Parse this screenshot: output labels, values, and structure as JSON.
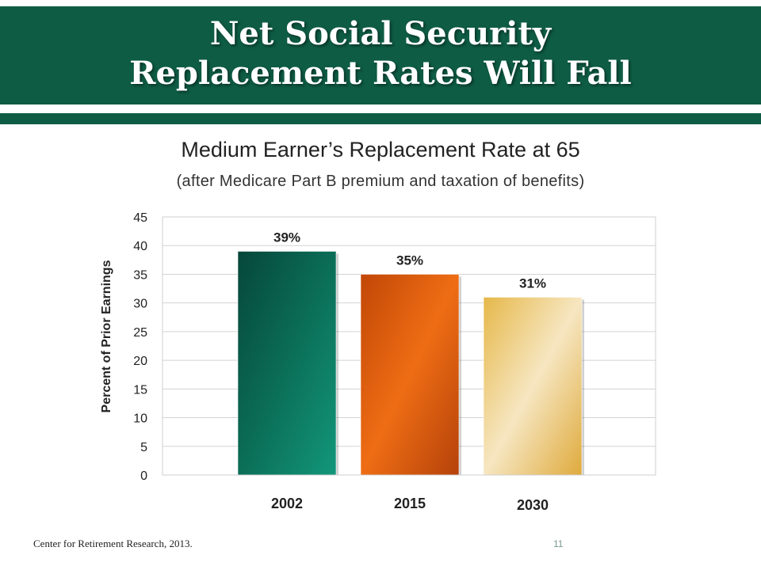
{
  "slide": {
    "title_line1": "Net Social Security",
    "title_line2": "Replacement Rates Will Fall",
    "source": "Center for Retirement Research, 2013.",
    "page_number": "11"
  },
  "colors": {
    "banner": "#0e5c44",
    "bar_2002": "#0b6e57",
    "bar_2015": "#e35f0d",
    "bar_2030": "#e9c36a"
  },
  "chart_data": {
    "type": "bar",
    "title": "Medium Earner’s Replacement Rate at 65",
    "subtitle": "(after Medicare Part B premium and taxation of benefits)",
    "ylabel": "Percent of Prior Earnings",
    "xlabel": "",
    "categories": [
      "2002",
      "2015",
      "2030"
    ],
    "values": [
      39,
      35,
      31
    ],
    "data_labels": [
      "39%",
      "35%",
      "31%"
    ],
    "ylim": [
      0,
      45
    ],
    "yticks": [
      0,
      5,
      10,
      15,
      20,
      25,
      30,
      35,
      40,
      45
    ],
    "grid": true,
    "legend": "none"
  }
}
